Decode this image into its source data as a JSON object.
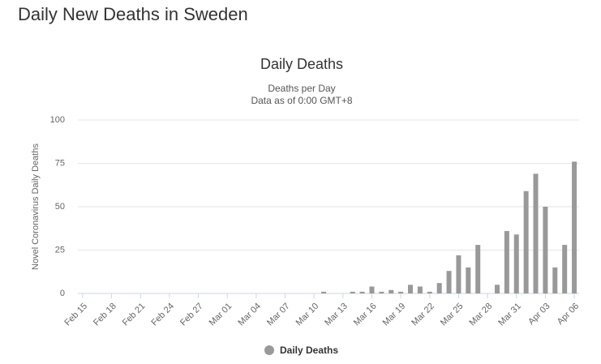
{
  "header": {
    "title": "Daily New Deaths in Sweden"
  },
  "chart_data": {
    "type": "bar",
    "title": "Daily Deaths",
    "subtitle": [
      "Deaths per Day",
      "Data as of 0:00 GMT+8"
    ],
    "y_label": "Novel Coronavirus Daily Deaths",
    "categories": [
      "Feb 15",
      null,
      null,
      "Feb 18",
      null,
      null,
      "Feb 21",
      null,
      null,
      "Feb 24",
      null,
      null,
      "Feb 27",
      null,
      null,
      "Mar 01",
      null,
      null,
      "Mar 04",
      null,
      null,
      "Mar 07",
      null,
      null,
      "Mar 10",
      null,
      null,
      "Mar 13",
      null,
      null,
      "Mar 16",
      null,
      null,
      "Mar 19",
      null,
      null,
      "Mar 22",
      null,
      null,
      "Mar 25",
      null,
      null,
      "Mar 28",
      null,
      null,
      "Mar 31",
      null,
      null,
      "Apr 03",
      null,
      null,
      "Apr 06"
    ],
    "series": [
      {
        "name": "Daily Deaths",
        "color": "#999999",
        "values": [
          0,
          0,
          0,
          0,
          0,
          0,
          0,
          0,
          0,
          0,
          0,
          0,
          0,
          0,
          0,
          0,
          0,
          0,
          0,
          0,
          0,
          0,
          0,
          0,
          0,
          1,
          0,
          0,
          1,
          1,
          4,
          1,
          2,
          1,
          5,
          4,
          1,
          6,
          13,
          22,
          15,
          28,
          0,
          5,
          36,
          34,
          59,
          69,
          50,
          15,
          28,
          76
        ]
      }
    ],
    "ylim": [
      0,
      100
    ],
    "yticks": [
      0,
      25,
      50,
      75,
      100
    ],
    "grid": true,
    "legend": "bottom"
  }
}
